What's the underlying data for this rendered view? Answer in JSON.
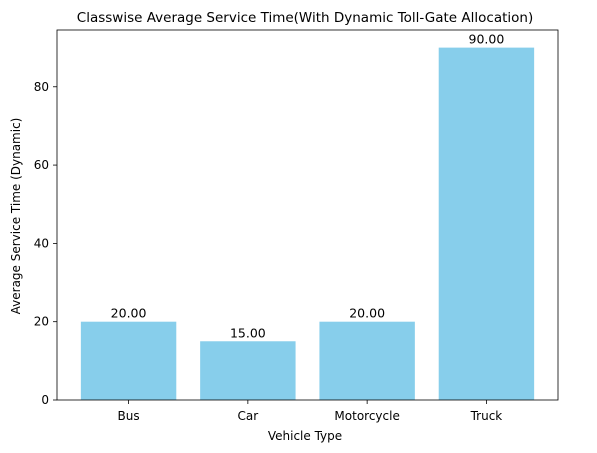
{
  "chart_data": {
    "type": "bar",
    "title": "Classwise Average Service Time(With Dynamic Toll-Gate Allocation)",
    "xlabel": "Vehicle Type",
    "ylabel": "Average Service Time (Dynamic)",
    "categories": [
      "Bus",
      "Car",
      "Motorcycle",
      "Truck"
    ],
    "values": [
      20,
      15,
      20,
      90
    ],
    "data_labels": [
      "20.00",
      "15.00",
      "20.00",
      "90.00"
    ],
    "ylim": [
      0,
      94.5
    ],
    "yticks": [
      0,
      20,
      40,
      60,
      80
    ],
    "ytick_labels": [
      "0",
      "20",
      "40",
      "60",
      "80"
    ],
    "grid": false,
    "bar_color": "#87ceeb"
  }
}
